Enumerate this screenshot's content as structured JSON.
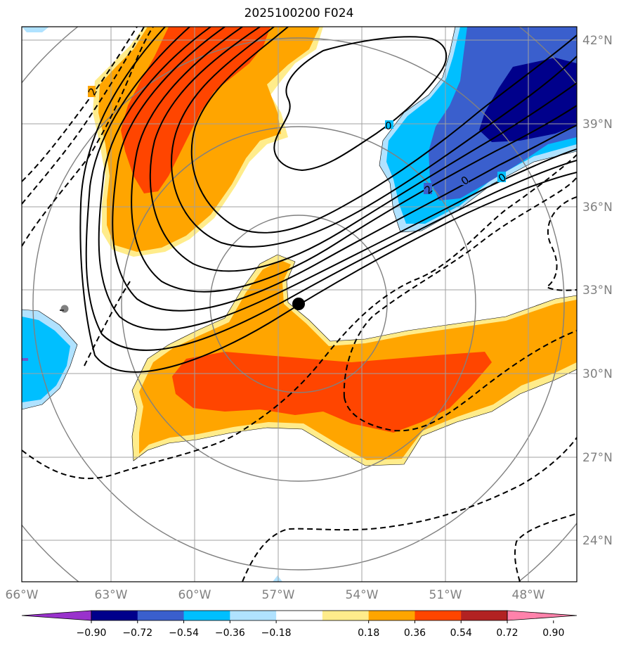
{
  "title": "2025100200 F024",
  "lon_labels": [
    "66°W",
    "63°W",
    "60°W",
    "57°W",
    "54°W",
    "51°W",
    "48°W"
  ],
  "lat_labels": [
    "42°N",
    "39°N",
    "36°N",
    "33°N",
    "30°N",
    "27°N",
    "24°N"
  ],
  "colorbar": {
    "ticks": [
      "−0.90",
      "−0.72",
      "−0.54",
      "−0.36",
      "−0.18",
      "0.18",
      "0.36",
      "0.54",
      "0.72",
      "0.90"
    ],
    "colors": [
      "#9932cc",
      "#00008b",
      "#3a5fcd",
      "#00bfff",
      "#b0e2ff",
      "#ffffff",
      "#ffec8b",
      "#ffa500",
      "#ff4500",
      "#b22222",
      "#ff82ab"
    ]
  },
  "contour_labels": [
    "2",
    "0",
    "2",
    "0",
    "0"
  ],
  "colors": {
    "grid": "#a0a0a0",
    "range_rings": "#808080",
    "contour": "#000000"
  }
}
